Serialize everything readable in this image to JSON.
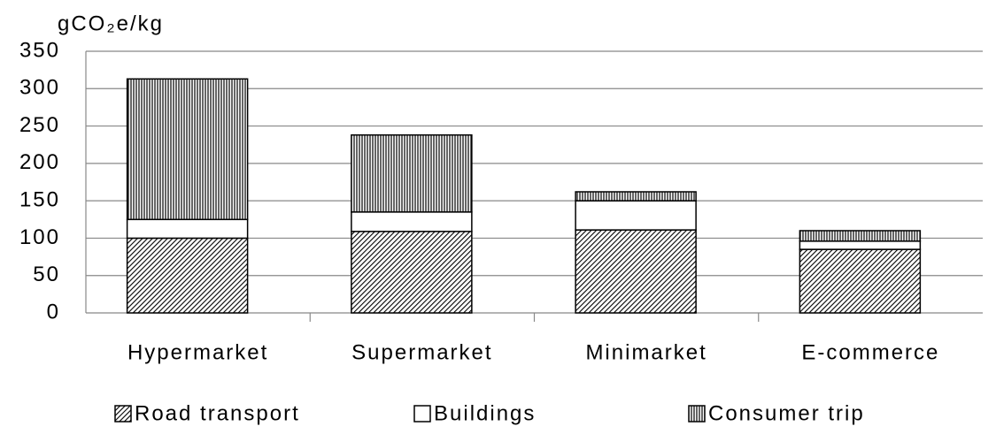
{
  "chart_data": {
    "type": "stacked_bar",
    "y_axis_label": "gCO₂e/kg",
    "categories": [
      "Hypermarket",
      "Supermarket",
      "Minimarket",
      "E-commerce"
    ],
    "series": [
      {
        "name": "Road transport",
        "color": "#000000",
        "pattern": "diagonal",
        "values": [
          100,
          109,
          111,
          85
        ]
      },
      {
        "name": "Buildings",
        "color": "#ffffff",
        "pattern": "none",
        "values": [
          25,
          26,
          39,
          11
        ]
      },
      {
        "name": "Consumer trip",
        "color": "#000000",
        "pattern": "vertical",
        "values": [
          188,
          103,
          12,
          14
        ]
      }
    ],
    "ylim": [
      0,
      350
    ],
    "yticks": [
      0,
      50,
      100,
      150,
      200,
      250,
      300,
      350
    ],
    "grid": true,
    "legend": "bottom"
  }
}
